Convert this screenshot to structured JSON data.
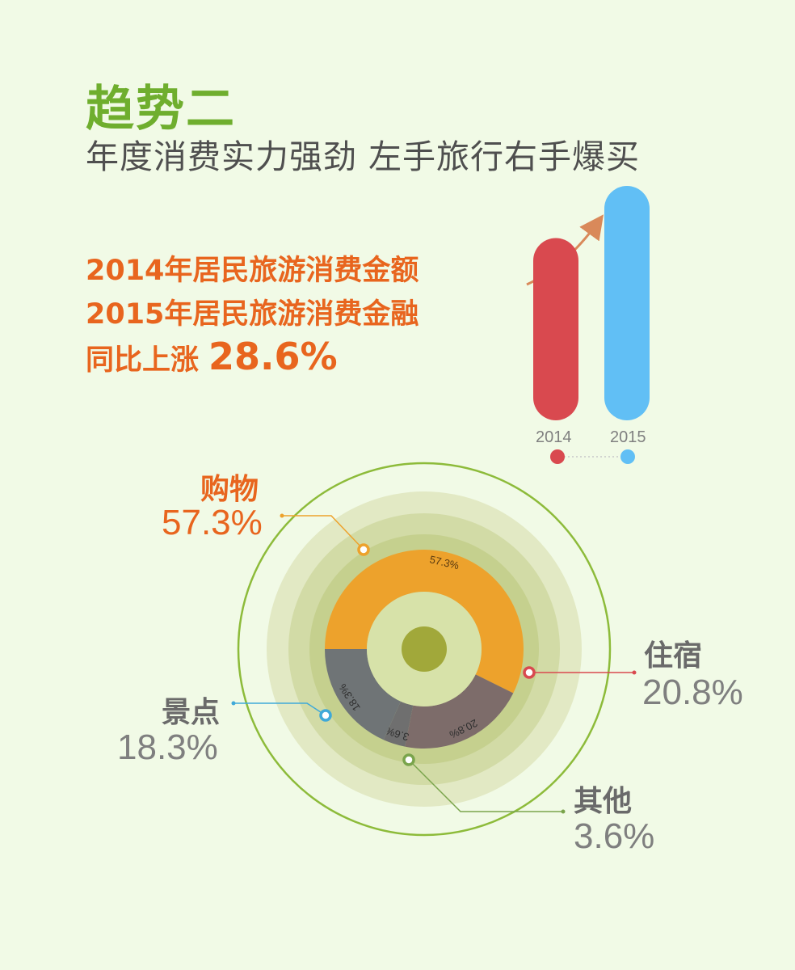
{
  "header": {
    "title": "趋势二",
    "subtitle": "年度消费实力强劲  左手旅行右手爆买"
  },
  "headline": {
    "line1": "2014年居民旅游消费金额",
    "line2": "2015年居民旅游消费金融",
    "line3_prefix": "同比上涨",
    "growth": "28.6%"
  },
  "colors": {
    "title": "#6fae2e",
    "orange": "#e8651e",
    "bar_2014": "#d9494f",
    "bar_2015": "#61bff5",
    "shopping": "#eda22c",
    "lodging": "#7d6c6a",
    "other": "#6f6f6f",
    "scenic": "#6f7476",
    "scenic_marker": "#3fa9d8",
    "other_marker": "#7aa44c",
    "background": "#f1fae6"
  },
  "chart_data": [
    {
      "type": "bar",
      "categories": [
        "2014",
        "2015"
      ],
      "values": [
        100,
        128.6
      ],
      "title": "",
      "ylim": [
        0,
        128.6
      ]
    },
    {
      "type": "pie",
      "title": "",
      "categories": [
        "购物",
        "住宿",
        "其他",
        "景点"
      ],
      "values": [
        57.3,
        20.8,
        3.6,
        18.3
      ],
      "labels": [
        "57.3%",
        "20.8%",
        "3.6%",
        "18.3%"
      ],
      "legend_names": {
        "shopping": "购物",
        "lodging": "住宿",
        "other": "其他",
        "scenic": "景点"
      },
      "legend_values": {
        "shopping": "57.3%",
        "lodging": "20.8%",
        "other": "3.6%",
        "scenic": "18.3%"
      }
    }
  ]
}
